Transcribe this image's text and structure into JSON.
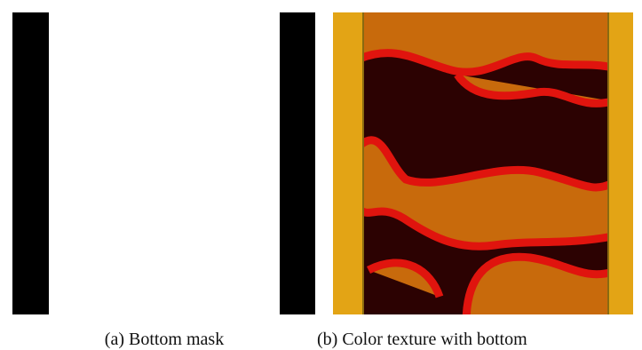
{
  "figures": [
    {
      "caption": "(a) Bottom mask"
    },
    {
      "caption": "(b) Color texture with bottom"
    }
  ]
}
